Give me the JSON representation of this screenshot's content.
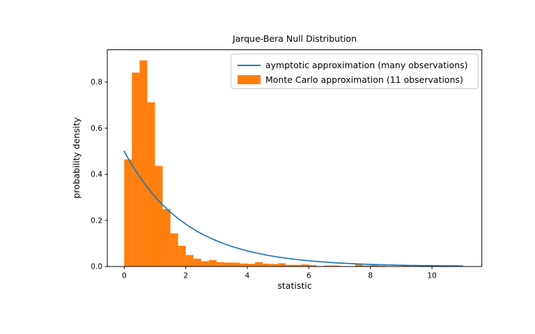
{
  "chart_data": {
    "type": "bar",
    "title": "Jarque-Bera Null Distribution",
    "xlabel": "statistic",
    "ylabel": "probability density",
    "xlim": [
      -0.55,
      11.62
    ],
    "ylim": [
      0,
      0.94
    ],
    "grid": false,
    "xticks": [
      0,
      2,
      4,
      6,
      8,
      10
    ],
    "xtick_labels": [
      "0",
      "2",
      "4",
      "6",
      "8",
      "10"
    ],
    "yticks": [
      0.0,
      0.2,
      0.4,
      0.6,
      0.8
    ],
    "ytick_labels": [
      "0.0",
      "0.2",
      "0.4",
      "0.6",
      "0.8"
    ],
    "legend": {
      "position": "upper right",
      "entries": [
        {
          "label": "aymptotic approximation (many observations)",
          "type": "line",
          "color": "#1f77b4"
        },
        {
          "label": "Monte Carlo approximation (11 observations)",
          "type": "patch",
          "color": "#ff7f0e"
        }
      ]
    },
    "series": [
      {
        "name": "aymptotic approximation (many observations)",
        "type": "line",
        "color": "#1f77b4",
        "line_width": 1.7,
        "model": {
          "type": "exponential_pdf (chi-squared, df=2)",
          "amplitude": 0.5,
          "rate": 0.5
        },
        "x_start": 0,
        "x_end": 11,
        "sample_points": [
          [
            0,
            0.5
          ],
          [
            1,
            0.3033
          ],
          [
            2,
            0.1839
          ],
          [
            3,
            0.1116
          ],
          [
            4,
            0.0677
          ],
          [
            5,
            0.041
          ],
          [
            6,
            0.0249
          ],
          [
            7,
            0.0151
          ],
          [
            8,
            0.0092
          ],
          [
            9,
            0.0056
          ],
          [
            10,
            0.0034
          ],
          [
            11,
            0.002
          ]
        ]
      },
      {
        "name": "Monte Carlo approximation (11 observations)",
        "type": "bar",
        "color": "#ff7f0e",
        "bin_start": 0,
        "bin_width": 0.25,
        "heights": [
          0.464,
          0.841,
          0.894,
          0.712,
          0.436,
          0.249,
          0.144,
          0.09,
          0.05,
          0.034,
          0.023,
          0.028,
          0.019,
          0.017,
          0.017,
          0.013,
          0.012,
          0.019,
          0.012,
          0.011,
          0.014,
          0.007,
          0.007,
          0.009,
          0.006,
          0.0,
          0.004,
          0.004,
          0.0,
          0.0,
          0.01,
          0.004,
          0.008,
          0.004,
          0.0,
          0.0,
          0.004,
          0.0,
          0.0,
          0.004,
          0.0,
          0.0,
          0.0,
          0.005
        ]
      }
    ],
    "axis_color": "#000000",
    "background_color": "#ffffff"
  }
}
